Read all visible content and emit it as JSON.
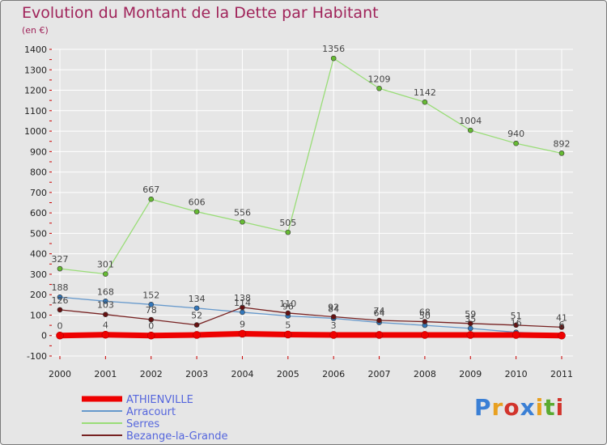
{
  "title": "Evolution du Montant de la Dette par Habitant",
  "subtitle": "(en €)",
  "logo": {
    "text": "Proxiti",
    "colors": [
      "#3a7fd5",
      "#e8a020",
      "#d2342c",
      "#3a7fd5",
      "#e8a020",
      "#5aaa30",
      "#d2342c"
    ]
  },
  "colors": {
    "background": "#e6e6e6",
    "grid": "#ffffff",
    "axis_ticks": "#cc0000"
  },
  "chart_data": {
    "type": "line",
    "x": [
      "2000",
      "2001",
      "2002",
      "2003",
      "2004",
      "2005",
      "2006",
      "2007",
      "2008",
      "2009",
      "2010",
      "2011"
    ],
    "ylim": [
      -100,
      1400
    ],
    "yticks": [
      -100,
      0,
      100,
      200,
      300,
      400,
      500,
      600,
      700,
      800,
      900,
      1000,
      1100,
      1200,
      1300,
      1400
    ],
    "grid": true,
    "legend": "bottom-left",
    "series": [
      {
        "name": "ATHIENVILLE",
        "color": "#ee0000",
        "thick": true,
        "dot": "#ee0000",
        "values": [
          0,
          4,
          0,
          3,
          9,
          5,
          3,
          3,
          3,
          3,
          3,
          0
        ],
        "labels": [
          "0",
          "4",
          "0",
          "",
          "9",
          "5",
          "3",
          "",
          "",
          "",
          "",
          ""
        ]
      },
      {
        "name": "Arracourt",
        "color": "#6699cc",
        "thick": false,
        "dot": "#3377bb",
        "values": [
          188,
          168,
          152,
          134,
          114,
          96,
          84,
          64,
          50,
          35,
          16,
          6
        ],
        "labels": [
          "188",
          "168",
          "152",
          "134",
          "114",
          "96",
          "84",
          "64",
          "50",
          "35",
          "16",
          "6"
        ]
      },
      {
        "name": "Serres",
        "color": "#99dd77",
        "thick": false,
        "dot": "#66bb33",
        "values": [
          327,
          301,
          667,
          606,
          556,
          505,
          1356,
          1209,
          1142,
          1004,
          940,
          892
        ],
        "labels": [
          "327",
          "301",
          "667",
          "606",
          "556",
          "505",
          "1356",
          "1209",
          "1142",
          "1004",
          "940",
          "892"
        ]
      },
      {
        "name": "Bezange-la-Grande",
        "color": "#772222",
        "thick": false,
        "dot": "#661111",
        "values": [
          126,
          103,
          78,
          52,
          138,
          110,
          92,
          74,
          68,
          59,
          51,
          41
        ],
        "labels": [
          "126",
          "103",
          "78",
          "52",
          "138",
          "110",
          "92",
          "74",
          "68",
          "59",
          "51",
          "41"
        ]
      }
    ]
  }
}
